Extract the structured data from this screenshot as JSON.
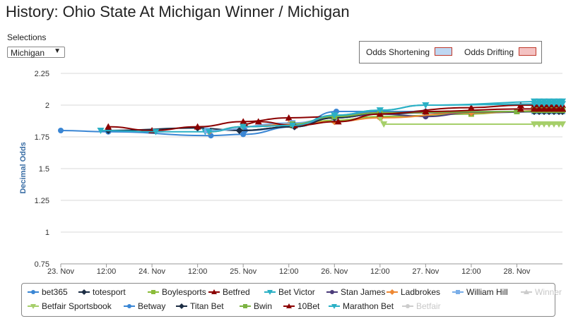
{
  "title": "History: Ohio State At Michigan Winner / Michigan",
  "selections": {
    "label": "Selections",
    "value": "Michigan"
  },
  "odds_legend": {
    "shortening": {
      "label": "Odds Shortening",
      "color": "#bfd7f2",
      "border": "#c0392b"
    },
    "drifting": {
      "label": "Odds Drifting",
      "color": "#f4c2c2",
      "border": "#c0392b"
    }
  },
  "chart_data": {
    "type": "line",
    "title": "",
    "xlabel": "",
    "ylabel": "Decimal Odds",
    "ylim": [
      0.75,
      2.25
    ],
    "yticks": [
      "0.75",
      "1",
      "1.25",
      "1.5",
      "1.75",
      "2",
      "2.25"
    ],
    "xlim": [
      0,
      132
    ],
    "x_unit": "hours from 23 Nov 00:00",
    "xticks": [
      {
        "x": 0,
        "label": "23. Nov"
      },
      {
        "x": 12,
        "label": "12:00"
      },
      {
        "x": 24,
        "label": "24. Nov"
      },
      {
        "x": 36,
        "label": "12:00"
      },
      {
        "x": 48,
        "label": "25. Nov"
      },
      {
        "x": 60,
        "label": "12:00"
      },
      {
        "x": 72,
        "label": "26. Nov"
      },
      {
        "x": 84,
        "label": "12:00"
      },
      {
        "x": 96,
        "label": "27. Nov"
      },
      {
        "x": 108,
        "label": "12:00"
      },
      {
        "x": 120,
        "label": "28. Nov"
      }
    ],
    "grid": true,
    "legend_position": "bottom",
    "series": [
      {
        "name": "bet365",
        "color": "#3a86d4",
        "marker": "circle",
        "visible": true,
        "points": [
          [
            0,
            1.8
          ],
          [
            12.5,
            1.79
          ],
          [
            39.5,
            1.76
          ],
          [
            48,
            1.77
          ],
          [
            61.5,
            1.83
          ],
          [
            72.5,
            1.95
          ],
          [
            84,
            1.95
          ],
          [
            96,
            1.95
          ],
          [
            132,
            1.95
          ]
        ]
      },
      {
        "name": "totesport",
        "color": "#1c2d44",
        "marker": "diamond",
        "visible": true,
        "points": [
          [
            12.5,
            1.8
          ],
          [
            36,
            1.82
          ],
          [
            47,
            1.8
          ],
          [
            61.5,
            1.83
          ],
          [
            72,
            1.9
          ],
          [
            84,
            1.93
          ],
          [
            96,
            1.94
          ],
          [
            132,
            1.95
          ]
        ]
      },
      {
        "name": "Boylesports",
        "color": "#8bbc3a",
        "marker": "square",
        "visible": true,
        "points": [
          [
            48,
            1.83
          ],
          [
            61,
            1.84
          ],
          [
            72,
            1.88
          ],
          [
            84,
            1.91
          ],
          [
            108,
            1.93
          ],
          [
            120,
            1.95
          ],
          [
            132,
            1.96
          ]
        ]
      },
      {
        "name": "Betfred",
        "color": "#8b0000",
        "marker": "triangle",
        "visible": true,
        "points": [
          [
            12.5,
            1.83
          ],
          [
            24,
            1.8
          ],
          [
            36,
            1.83
          ],
          [
            48,
            1.87
          ],
          [
            60,
            1.9
          ],
          [
            72,
            1.91
          ],
          [
            84,
            1.94
          ],
          [
            108,
            1.98
          ],
          [
            121,
            2.0
          ],
          [
            132,
            2.0
          ]
        ]
      },
      {
        "name": "Bet Victor",
        "color": "#2ab0c5",
        "marker": "triangle-down",
        "visible": true,
        "points": [
          [
            10.5,
            1.8
          ],
          [
            25,
            1.79
          ],
          [
            38,
            1.79
          ],
          [
            48,
            1.83
          ],
          [
            61,
            1.84
          ],
          [
            72,
            1.92
          ],
          [
            84,
            1.96
          ],
          [
            96,
            2.0
          ],
          [
            132,
            2.03
          ]
        ]
      },
      {
        "name": "Stan James",
        "color": "#4b3b79",
        "marker": "circle",
        "visible": true,
        "points": [
          [
            72,
            1.9
          ],
          [
            84,
            1.93
          ],
          [
            96,
            1.91
          ],
          [
            108,
            1.94
          ],
          [
            132,
            1.95
          ]
        ]
      },
      {
        "name": "Ladbrokes",
        "color": "#ee8833",
        "marker": "diamond",
        "visible": true,
        "points": [
          [
            39,
            1.79
          ],
          [
            48,
            1.83
          ],
          [
            60,
            1.85
          ],
          [
            72,
            1.87
          ],
          [
            84,
            1.9
          ],
          [
            108,
            1.94
          ],
          [
            132,
            1.96
          ]
        ]
      },
      {
        "name": "William Hill",
        "color": "#7aaee8",
        "marker": "square",
        "visible": true,
        "points": [
          [
            38.5,
            1.8
          ],
          [
            61,
            1.86
          ],
          [
            72,
            1.9
          ],
          [
            84,
            1.94
          ],
          [
            132,
            1.95
          ]
        ]
      },
      {
        "name": "Winner",
        "color": "#cccccc",
        "marker": "triangle",
        "visible": false,
        "points": []
      },
      {
        "name": "Betfair Sportsbook",
        "color": "#a6cf6a",
        "marker": "triangle-down",
        "visible": true,
        "points": [
          [
            84,
            1.9
          ],
          [
            85,
            1.85
          ],
          [
            132,
            1.85
          ]
        ]
      },
      {
        "name": "Betway",
        "color": "#3a86d4",
        "marker": "circle",
        "visible": true,
        "points": [
          [
            48.5,
            1.8
          ],
          [
            61.5,
            1.83
          ],
          [
            72,
            1.91
          ],
          [
            84,
            1.95
          ],
          [
            132,
            1.95
          ]
        ]
      },
      {
        "name": "Titan Bet",
        "color": "#1c2d44",
        "marker": "diamond",
        "visible": true,
        "points": [
          [
            47,
            1.8
          ],
          [
            61.5,
            1.83
          ],
          [
            72,
            1.9
          ],
          [
            84,
            1.94
          ],
          [
            132,
            1.95
          ]
        ]
      },
      {
        "name": "Bwin",
        "color": "#7cb342",
        "marker": "square",
        "visible": true,
        "points": [
          [
            61,
            1.85
          ],
          [
            72,
            1.91
          ],
          [
            84,
            1.94
          ],
          [
            120,
            1.95
          ],
          [
            132,
            1.96
          ]
        ]
      },
      {
        "name": "10Bet",
        "color": "#8b0000",
        "marker": "triangle",
        "visible": true,
        "points": [
          [
            48.5,
            1.85
          ],
          [
            52,
            1.87
          ],
          [
            61.5,
            1.84
          ],
          [
            73,
            1.87
          ],
          [
            84,
            1.93
          ],
          [
            96,
            1.95
          ],
          [
            121,
            1.97
          ],
          [
            132,
            1.97
          ]
        ]
      },
      {
        "name": "Marathon Bet",
        "color": "#2ab0c5",
        "marker": "triangle-down",
        "visible": true,
        "points": [
          [
            39,
            1.79
          ],
          [
            48,
            1.83
          ],
          [
            61,
            1.84
          ],
          [
            72,
            1.92
          ],
          [
            84,
            1.96
          ],
          [
            96,
            2.0
          ],
          [
            132,
            2.01
          ]
        ]
      },
      {
        "name": "Betfair",
        "color": "#cccccc",
        "marker": "circle",
        "visible": false,
        "points": []
      }
    ]
  }
}
